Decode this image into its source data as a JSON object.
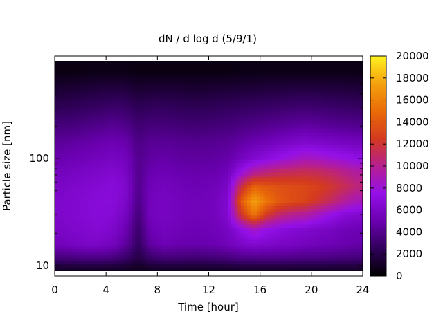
{
  "chart_data": {
    "type": "heatmap",
    "title": "dN / d log d (5/9/1)",
    "xlabel": "Time [hour]",
    "ylabel": "Particle size [nm]",
    "xlim": [
      0,
      24
    ],
    "ylim": [
      8,
      900
    ],
    "yscale": "log",
    "x_ticks": [
      0,
      4,
      8,
      12,
      16,
      20,
      24
    ],
    "y_ticks": [
      10,
      100
    ],
    "zlim": [
      0,
      20000
    ],
    "colorbar_ticks": [
      0,
      2000,
      4000,
      6000,
      8000,
      10000,
      12000,
      14000,
      16000,
      18000,
      20000
    ],
    "colormap": [
      "#000000",
      "#30005a",
      "#6a00b0",
      "#9410e8",
      "#b61f90",
      "#d43a1e",
      "#ea6c08",
      "#f4a10e",
      "#fff220"
    ],
    "z_grid": {
      "x": [
        0.5,
        1.5,
        2.5,
        3.5,
        4.5,
        5.5,
        6.5,
        7.5,
        8.5,
        9.5,
        10.5,
        11.5,
        12.5,
        13.5,
        14.5,
        15.5,
        16.5,
        17.5,
        18.5,
        19.5,
        20.5,
        21.5,
        22.5,
        23.5
      ],
      "d": [
        9,
        12,
        16,
        22,
        30,
        40,
        55,
        75,
        100,
        140,
        200,
        300,
        450,
        650
      ],
      "z": [
        [
          800,
          800,
          800,
          800,
          800,
          800,
          700,
          800,
          800,
          800,
          800,
          800,
          800,
          800,
          900,
          900,
          900,
          900,
          900,
          900,
          900,
          900,
          900,
          900
        ],
        [
          3500,
          3600,
          3800,
          3800,
          3600,
          3000,
          2000,
          3000,
          3400,
          3400,
          3300,
          3300,
          3400,
          3600,
          3900,
          4000,
          4000,
          4000,
          3900,
          3800,
          3800,
          3700,
          3600,
          3500
        ],
        [
          5500,
          5800,
          6000,
          6000,
          5600,
          4600,
          2600,
          4600,
          5200,
          5000,
          4900,
          4900,
          5100,
          5400,
          6000,
          6400,
          6200,
          6000,
          5800,
          5600,
          5400,
          5200,
          5000,
          4800
        ],
        [
          6000,
          6200,
          6400,
          6600,
          6200,
          5200,
          3000,
          5200,
          5600,
          5400,
          5200,
          5200,
          5400,
          5800,
          7200,
          8600,
          7600,
          7000,
          6600,
          6400,
          6000,
          5800,
          5400,
          5200
        ],
        [
          6200,
          6400,
          6600,
          6800,
          6600,
          5800,
          3400,
          5600,
          5800,
          5600,
          5400,
          5400,
          5600,
          6400,
          12000,
          15500,
          12500,
          10800,
          10000,
          9600,
          8600,
          7600,
          6800,
          6400
        ],
        [
          6200,
          6400,
          6600,
          6800,
          6800,
          6200,
          3800,
          5600,
          5800,
          5600,
          5400,
          5400,
          5600,
          6400,
          14000,
          17500,
          15500,
          14000,
          13400,
          13000,
          12000,
          11000,
          9800,
          8800
        ],
        [
          6000,
          6200,
          6400,
          6600,
          6800,
          6400,
          4000,
          5400,
          5600,
          5400,
          5200,
          5200,
          5400,
          6000,
          11500,
          14500,
          14000,
          13600,
          13400,
          13200,
          12800,
          12200,
          11400,
          10600
        ],
        [
          5600,
          5800,
          6000,
          6200,
          6400,
          6000,
          4000,
          5000,
          5200,
          5000,
          4900,
          4900,
          5000,
          5400,
          7600,
          9600,
          10400,
          11000,
          11200,
          11400,
          11200,
          10800,
          10200,
          9600
        ],
        [
          5000,
          5200,
          5400,
          5600,
          5800,
          5600,
          4000,
          4600,
          4800,
          4600,
          4500,
          4500,
          4600,
          4800,
          5600,
          6400,
          7000,
          7600,
          8200,
          8800,
          8600,
          8200,
          7800,
          7400
        ],
        [
          4400,
          4600,
          4800,
          5000,
          5200,
          5000,
          3800,
          4200,
          4300,
          4200,
          4100,
          4100,
          4200,
          4300,
          4700,
          5100,
          5400,
          5800,
          6100,
          6400,
          6200,
          6000,
          5800,
          5600
        ],
        [
          3500,
          3600,
          3800,
          4000,
          4200,
          4000,
          3200,
          3500,
          3500,
          3400,
          3300,
          3300,
          3400,
          3500,
          3700,
          3900,
          4100,
          4300,
          4500,
          4700,
          4500,
          4300,
          4200,
          4100
        ],
        [
          2400,
          2500,
          2700,
          2800,
          3000,
          2900,
          2400,
          2600,
          2600,
          2500,
          2400,
          2400,
          2500,
          2600,
          2700,
          2800,
          2900,
          3000,
          3100,
          3200,
          3100,
          3000,
          2900,
          2800
        ],
        [
          1400,
          1500,
          1600,
          1700,
          1800,
          1700,
          1400,
          1500,
          1500,
          1500,
          1400,
          1400,
          1500,
          1500,
          1600,
          1600,
          1700,
          1700,
          1800,
          1800,
          1800,
          1700,
          1700,
          1600
        ],
        [
          500,
          500,
          600,
          600,
          600,
          600,
          500,
          500,
          500,
          500,
          500,
          500,
          500,
          500,
          600,
          600,
          600,
          600,
          600,
          600,
          600,
          600,
          600,
          600
        ]
      ]
    },
    "grid": false,
    "colorbar": "right"
  }
}
